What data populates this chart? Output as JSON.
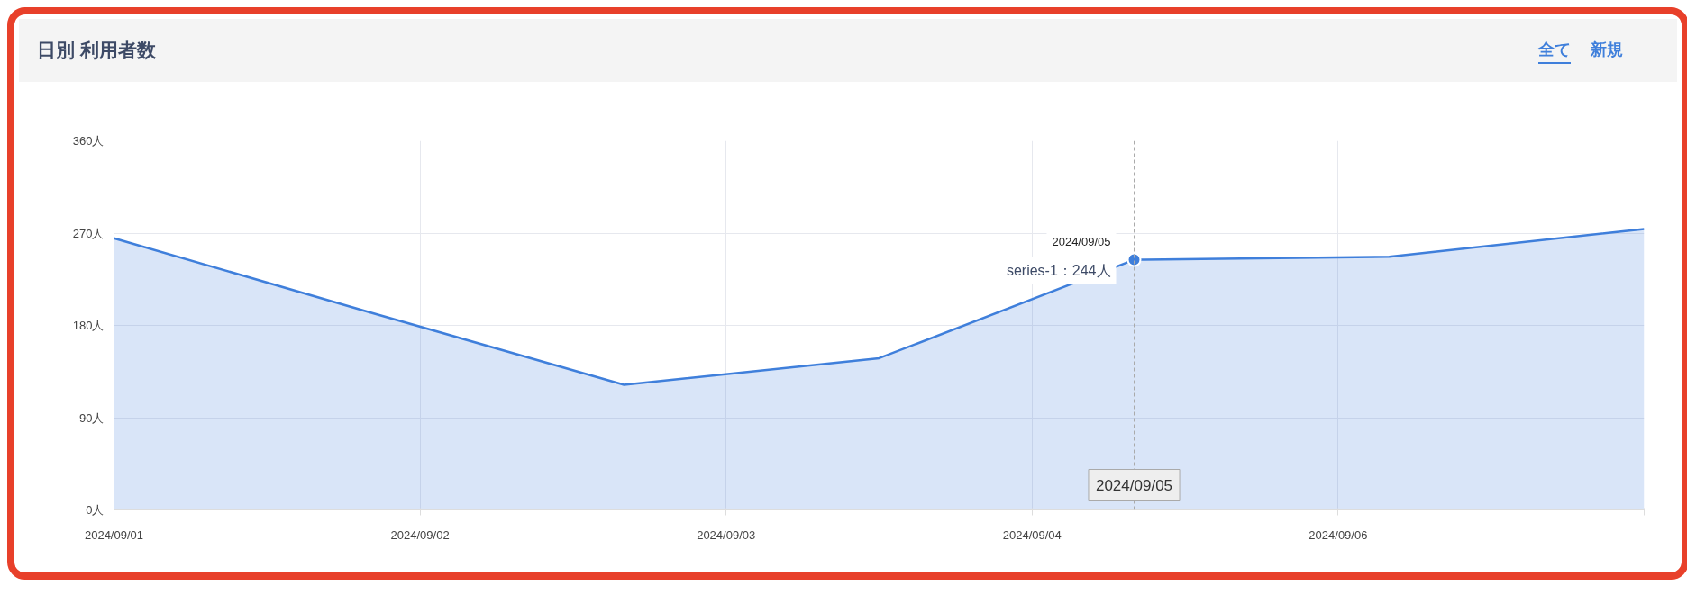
{
  "chart_data": {
    "type": "area",
    "title": "日別 利用者数",
    "annotations": [
      "全て",
      "新規",
      {
        "text": "2024/09/05",
        "x": "2024-09-05",
        "y": 244
      },
      {
        "text": "series-1：244人",
        "x": "2024-09-05",
        "y": 244
      }
    ],
    "x": [
      "2024-09-01",
      "2024-09-02",
      "2024-09-03",
      "2024-09-04",
      "2024-09-05",
      "2024-09-06",
      "2024-09-07"
    ],
    "series": [
      {
        "color": "#3f7fdb",
        "values": [
          265,
          193,
          122,
          148,
          244,
          247,
          274
        ]
      }
    ],
    "xlim": [
      "2024-09-01",
      "2024-09-07"
    ],
    "xticks": [
      {
        "value": "2024-09-01T00:00",
        "label": "2024/09/01"
      },
      {
        "value": "2024-09-02T04:48",
        "label": "2024/09/02"
      },
      {
        "value": "2024-09-03T09:36",
        "label": "2024/09/03"
      },
      {
        "value": "2024-09-04T14:24",
        "label": "2024/09/04"
      },
      {
        "value": "2024-09-05T19:12",
        "label": "2024/09/06"
      },
      {
        "value": "2024-09-07T00:00",
        "label": null
      }
    ],
    "ylim": [
      0,
      360
    ],
    "yticks": [
      {
        "value": 0,
        "label": "0人"
      },
      {
        "value": 90,
        "label": "90人"
      },
      {
        "value": 180,
        "label": "180人"
      },
      {
        "value": 270,
        "label": "270人"
      },
      {
        "value": 360,
        "label": "360人"
      }
    ],
    "ref_lines": [
      {
        "axis": "x",
        "value": "2024-09-05",
        "label": "2024/09/05",
        "color": "#aaaaaa",
        "line_style": "dashed"
      }
    ],
    "grid": true,
    "marker": "none",
    "line_style": "solid"
  }
}
